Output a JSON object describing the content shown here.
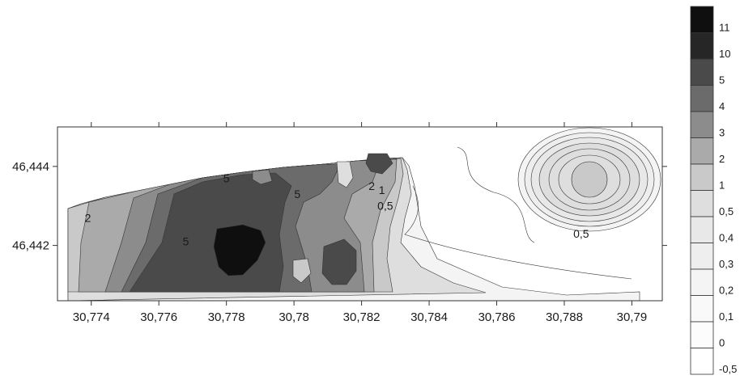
{
  "chart_data": {
    "type": "heatmap",
    "subtype": "filled-contour",
    "x_ticks": [
      "30,774",
      "30,776",
      "30,778",
      "30,78",
      "30,782",
      "30,784",
      "30,786",
      "30,788",
      "30,79"
    ],
    "x_tick_values": [
      30.774,
      30.776,
      30.778,
      30.78,
      30.782,
      30.784,
      30.786,
      30.788,
      30.79
    ],
    "y_ticks": [
      "46,444",
      "46,442"
    ],
    "y_tick_values": [
      46.444,
      46.442
    ],
    "xlim": [
      30.773,
      30.7909
    ],
    "ylim": [
      46.4406,
      46.445
    ],
    "grid": false,
    "legend_position": "right",
    "colormap": "grayscale",
    "levels": [
      {
        "label": "11",
        "value": 11,
        "color": "#0f0f0f"
      },
      {
        "label": "10",
        "value": 10,
        "color": "#262626"
      },
      {
        "label": "5",
        "value": 5,
        "color": "#4a4a4a"
      },
      {
        "label": "4",
        "value": 4,
        "color": "#6b6b6b"
      },
      {
        "label": "3",
        "value": 3,
        "color": "#8c8c8c"
      },
      {
        "label": "2",
        "value": 2,
        "color": "#aaaaaa"
      },
      {
        "label": "1",
        "value": 1,
        "color": "#c9c9c9"
      },
      {
        "label": "0,5",
        "value": 0.5,
        "color": "#dedede"
      },
      {
        "label": "0,4",
        "value": 0.4,
        "color": "#e8e8e8"
      },
      {
        "label": "0,3",
        "value": 0.3,
        "color": "#eeeeee"
      },
      {
        "label": "0,2",
        "value": 0.2,
        "color": "#f4f4f4"
      },
      {
        "label": "0,1",
        "value": 0.1,
        "color": "#f9f9f9"
      },
      {
        "label": "0",
        "value": 0,
        "color": "#fcfcfc"
      },
      {
        "label": "-0,5",
        "value": -0.5,
        "color": "#ffffff"
      }
    ],
    "contour_labels": [
      {
        "text": "2",
        "x": 30.7739,
        "y": 46.4426
      },
      {
        "text": "5",
        "x": 30.7768,
        "y": 46.442
      },
      {
        "text": "5",
        "x": 30.778,
        "y": 46.4436
      },
      {
        "text": "5",
        "x": 30.7801,
        "y": 46.4432
      },
      {
        "text": "2",
        "x": 30.7823,
        "y": 46.4434
      },
      {
        "text": "1",
        "x": 30.7826,
        "y": 46.4433
      },
      {
        "text": "0,5",
        "x": 30.7827,
        "y": 46.4429
      },
      {
        "text": "0,5",
        "x": 30.7885,
        "y": 46.4422
      }
    ]
  }
}
